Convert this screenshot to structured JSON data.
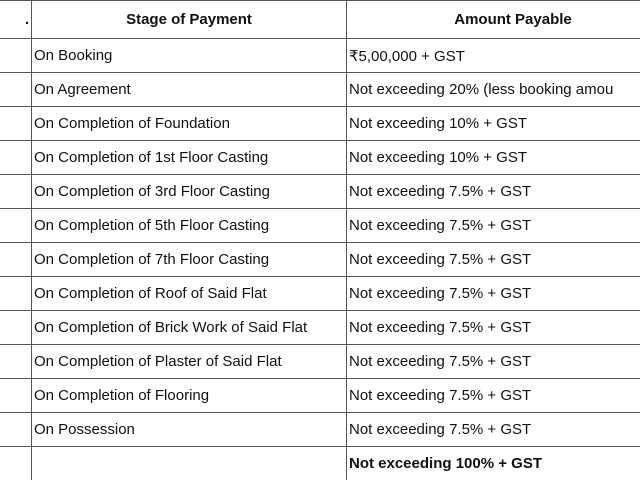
{
  "table": {
    "header": [
      ".",
      "Stage of Payment",
      "Amount Payable"
    ],
    "rows": [
      {
        "stage": "On Booking",
        "amount": "₹5,00,000 + GST"
      },
      {
        "stage": "On Agreement",
        "amount": "Not exceeding 20% (less booking amou"
      },
      {
        "stage": "On Completion of Foundation",
        "amount": "Not exceeding 10% + GST"
      },
      {
        "stage": "On Completion of 1st Floor Casting",
        "amount": "Not exceeding 10% + GST"
      },
      {
        "stage": "On Completion of 3rd Floor Casting",
        "amount": "Not exceeding 7.5% + GST"
      },
      {
        "stage": "On Completion of 5th Floor Casting",
        "amount": "Not exceeding 7.5% + GST"
      },
      {
        "stage": "On Completion of 7th Floor Casting",
        "amount": "Not exceeding 7.5% + GST"
      },
      {
        "stage": "On Completion of Roof of Said Flat",
        "amount": "Not exceeding 7.5% + GST"
      },
      {
        "stage": "On Completion of Brick Work of Said Flat",
        "amount": "Not exceeding 7.5% + GST"
      },
      {
        "stage": "On Completion of Plaster of Said Flat",
        "amount": "Not exceeding 7.5% + GST"
      },
      {
        "stage": "On Completion of Flooring",
        "amount": "Not exceeding 7.5% + GST"
      },
      {
        "stage": "On Possession",
        "amount": "Not exceeding 7.5% + GST"
      }
    ],
    "total": "Not exceeding 100% + GST"
  }
}
